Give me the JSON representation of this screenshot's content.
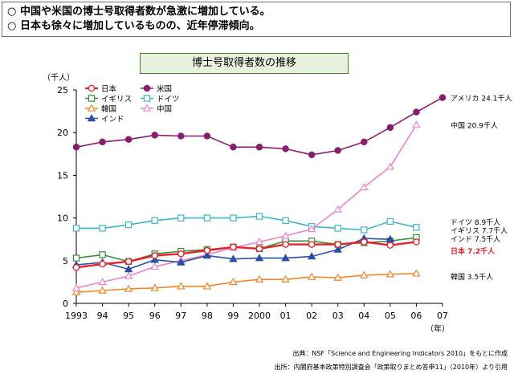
{
  "header": {
    "bullet_glyph": "○",
    "bullets": [
      "中国や米国の博士号取得者数が急激に増加している。",
      "日本も徐々に増加しているものの、近年停滞傾向。"
    ]
  },
  "footnotes": {
    "source1": "出典：NSF「Science and Engineering Indicators 2010」をもとに作成",
    "source2": "出所：内閣府基本政策特別調査会「政策取りまとめ答申11」（2010年）より引用"
  },
  "chart_data": {
    "type": "line",
    "title": "博士号取得者数の推移",
    "ylabel": "（千人）",
    "xlabel": "（年）",
    "ylim": [
      0,
      25
    ],
    "yticks": [
      "0",
      "5",
      "10",
      "15",
      "20",
      "25"
    ],
    "categories": [
      "1993",
      "94",
      "95",
      "96",
      "97",
      "98",
      "99",
      "2000",
      "01",
      "02",
      "03",
      "04",
      "05",
      "06",
      "07"
    ],
    "grid": false,
    "legend_position": "top-left",
    "series": [
      {
        "name": "日本",
        "color": "#e8212b",
        "marker": "circle-open",
        "values": [
          4.2,
          4.6,
          4.9,
          5.6,
          5.8,
          6.2,
          6.6,
          6.4,
          6.9,
          6.9,
          6.9,
          7.2,
          6.8,
          7.2,
          null
        ]
      },
      {
        "name": "米国",
        "color": "#8a1e6e",
        "marker": "circle-filled",
        "values": [
          18.3,
          18.9,
          19.2,
          19.7,
          19.6,
          19.6,
          18.3,
          18.3,
          18.1,
          17.4,
          17.9,
          18.9,
          20.6,
          22.4,
          24.1
        ]
      },
      {
        "name": "イギリス",
        "color": "#3d8c38",
        "marker": "square-open",
        "values": [
          5.3,
          5.7,
          4.9,
          5.8,
          6.1,
          6.3,
          6.6,
          6.4,
          7.3,
          7.3,
          6.9,
          7.1,
          7.3,
          7.7,
          null
        ]
      },
      {
        "name": "ドイツ",
        "color": "#3cb4c6",
        "marker": "square-open",
        "values": [
          8.8,
          8.8,
          9.2,
          9.7,
          10.0,
          10.0,
          10.0,
          10.2,
          9.7,
          9.0,
          8.8,
          8.6,
          9.6,
          8.9,
          null
        ]
      },
      {
        "name": "韓国",
        "color": "#f0862a",
        "marker": "triangle-open",
        "values": [
          1.3,
          1.5,
          1.7,
          1.8,
          2.0,
          2.0,
          2.5,
          2.8,
          2.8,
          3.1,
          3.0,
          3.3,
          3.4,
          3.5,
          null
        ]
      },
      {
        "name": "中国",
        "color": "#ea86c8",
        "marker": "triangle-open",
        "values": [
          1.8,
          2.5,
          3.2,
          4.3,
          5.0,
          5.7,
          6.5,
          7.2,
          7.9,
          8.7,
          11.0,
          13.6,
          16.0,
          20.9,
          null
        ]
      },
      {
        "name": "インド",
        "color": "#2b4fa6",
        "marker": "triangle-filled",
        "values": [
          4.5,
          4.8,
          4.0,
          5.1,
          4.8,
          5.6,
          5.2,
          5.3,
          5.3,
          5.5,
          6.3,
          7.6,
          7.5,
          null,
          null
        ]
      }
    ],
    "annotations": [
      {
        "text": "アメリカ 24.1千人",
        "value": 24.1,
        "color": "#000000",
        "bold": false
      },
      {
        "text": "中国 20.9千人",
        "value": 20.9,
        "color": "#000000",
        "bold": false
      },
      {
        "text": "ドイツ 8.9千人",
        "value": 9.6,
        "color": "#000000",
        "bold": false
      },
      {
        "text": "イギリス 7.7千人",
        "value": 8.6,
        "color": "#000000",
        "bold": false
      },
      {
        "text": "インド 7.5千人",
        "value": 7.6,
        "color": "#000000",
        "bold": false
      },
      {
        "text": "日本 7.2千人",
        "value": 6.2,
        "color": "#e8212b",
        "bold": true
      },
      {
        "text": "韓国 3.5千人",
        "value": 3.2,
        "color": "#000000",
        "bold": false
      }
    ]
  }
}
